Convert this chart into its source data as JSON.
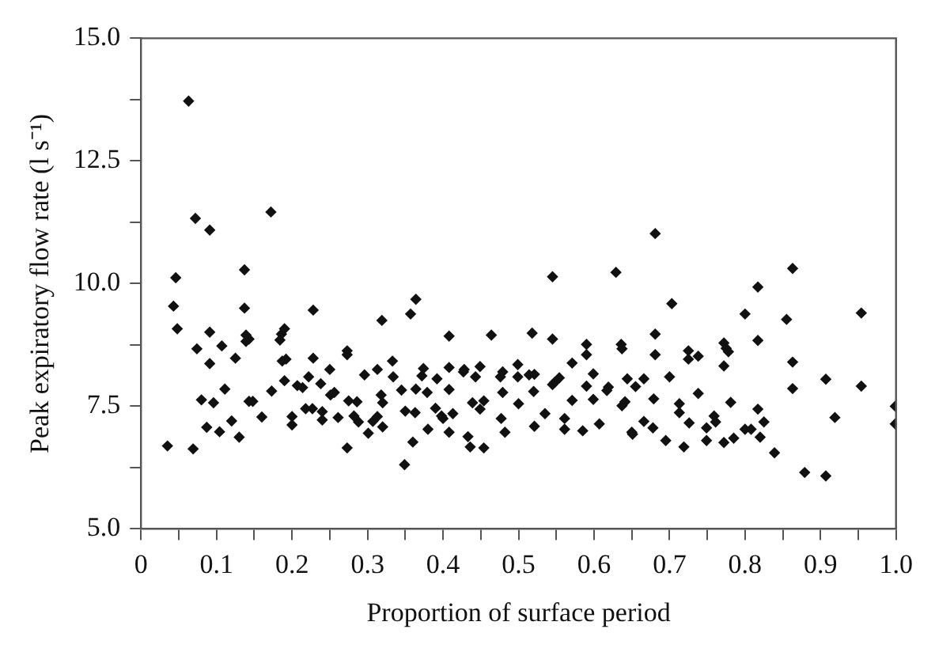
{
  "chart_data": {
    "type": "scatter",
    "xlabel": "Proportion of surface period",
    "ylabel": "Peak expiratory flow rate (l s⁻¹)",
    "marker": "diamond",
    "grid": false,
    "xlim": [
      0,
      1
    ],
    "ylim": [
      5,
      15
    ],
    "xticks": [
      0,
      {
        "value": 0.05,
        "label": null
      },
      0.1,
      {
        "value": 0.15,
        "label": null
      },
      0.2,
      {
        "value": 0.25,
        "label": null
      },
      0.3,
      {
        "value": 0.35,
        "label": null
      },
      0.4,
      {
        "value": 0.45,
        "label": null
      },
      0.5,
      {
        "value": 0.55,
        "label": null
      },
      0.6,
      {
        "value": 0.65,
        "label": null
      },
      0.7,
      {
        "value": 0.75,
        "label": null
      },
      0.8,
      {
        "value": 0.85,
        "label": null
      },
      0.9,
      {
        "value": 0.95,
        "label": null
      },
      {
        "value": 1,
        "label": "1.0"
      }
    ],
    "yticks": [
      {
        "value": 5,
        "label": "5.0"
      },
      {
        "value": 6.25,
        "label": null
      },
      7.5,
      {
        "value": 8.75,
        "label": null
      },
      {
        "value": 10,
        "label": "10.0"
      },
      {
        "value": 11.25,
        "label": null
      },
      12.5,
      {
        "value": 13.75,
        "label": null
      },
      {
        "value": 15,
        "label": "15.0"
      }
    ],
    "series": [
      {
        "color": "#111111",
        "x": [
          0.063,
          0.072,
          0.091,
          0.172,
          0.046,
          0.043,
          0.048,
          0.137,
          0.137,
          0.091,
          0.074,
          0.107,
          0.091,
          0.125,
          0.139,
          0.143,
          0.139,
          0.186,
          0.184,
          0.19,
          0.187,
          0.192,
          0.228,
          0.228,
          0.19,
          0.173,
          0.111,
          0.08,
          0.096,
          0.143,
          0.148,
          0.087,
          0.104,
          0.12,
          0.13,
          0.16,
          0.035,
          0.069,
          0.2,
          0.2,
          0.207,
          0.214,
          0.222,
          0.218,
          0.227,
          0.238,
          0.24,
          0.24,
          0.25,
          0.251,
          0.256,
          0.261,
          0.273,
          0.273,
          0.273,
          0.275,
          0.286,
          0.282,
          0.288,
          0.296,
          0.301,
          0.307,
          0.313,
          0.313,
          0.319,
          0.318,
          0.32,
          0.32,
          0.333,
          0.334,
          0.345,
          0.349,
          0.35,
          0.357,
          0.364,
          0.36,
          0.364,
          0.363,
          0.372,
          0.374,
          0.379,
          0.38,
          0.392,
          0.39,
          0.398,
          0.4,
          0.408,
          0.408,
          0.408,
          0.408,
          0.413,
          0.428,
          0.427,
          0.433,
          0.436,
          0.439,
          0.443,
          0.449,
          0.449,
          0.454,
          0.454,
          0.464,
          0.476,
          0.479,
          0.479,
          0.477,
          0.482,
          0.499,
          0.499,
          0.5,
          0.514,
          0.521,
          0.518,
          0.52,
          0.521,
          0.535,
          0.545,
          0.545,
          0.548,
          0.554,
          0.545,
          0.561,
          0.561,
          0.571,
          0.571,
          0.585,
          0.59,
          0.59,
          0.59,
          0.599,
          0.599,
          0.607,
          0.619,
          0.617,
          0.629,
          0.636,
          0.637,
          0.644,
          0.637,
          0.641,
          0.65,
          0.651,
          0.655,
          0.666,
          0.666,
          0.678,
          0.679,
          0.681,
          0.681,
          0.681,
          0.695,
          0.7,
          0.703,
          0.713,
          0.713,
          0.719,
          0.725,
          0.725,
          0.738,
          0.726,
          0.738,
          0.749,
          0.749,
          0.759,
          0.761,
          0.772,
          0.775,
          0.778,
          0.772,
          0.772,
          0.781,
          0.785,
          0.8,
          0.8,
          0.808,
          0.817,
          0.817,
          0.817,
          0.82,
          0.825,
          0.839,
          0.855,
          0.863,
          0.863,
          0.863,
          0.879,
          0.907,
          0.907,
          0.919,
          0.954,
          0.954,
          0.999,
          0.999
        ],
        "values": [
          13.72,
          11.33,
          11.09,
          11.46,
          10.12,
          9.54,
          9.08,
          10.28,
          9.5,
          9.01,
          8.67,
          8.73,
          8.37,
          8.48,
          8.95,
          8.87,
          8.82,
          8.97,
          8.85,
          9.08,
          8.42,
          8.46,
          9.46,
          8.48,
          8.02,
          7.81,
          7.85,
          7.63,
          7.57,
          7.6,
          7.6,
          7.07,
          6.98,
          7.2,
          6.87,
          7.28,
          6.69,
          6.63,
          7.29,
          7.12,
          7.92,
          7.88,
          8.1,
          7.45,
          7.45,
          7.96,
          7.39,
          7.22,
          8.25,
          7.73,
          7.78,
          7.27,
          8.63,
          8.55,
          6.65,
          7.61,
          7.59,
          7.3,
          7.18,
          8.14,
          6.95,
          7.19,
          8.25,
          7.29,
          9.25,
          7.73,
          7.57,
          7.08,
          8.42,
          8.1,
          7.83,
          6.31,
          7.4,
          9.38,
          9.68,
          6.77,
          7.85,
          7.37,
          8.12,
          8.27,
          7.78,
          7.03,
          8.06,
          7.46,
          7.3,
          7.25,
          8.93,
          8.29,
          7.84,
          6.97,
          7.35,
          8.25,
          8.2,
          6.88,
          6.67,
          7.57,
          8.1,
          8.31,
          7.44,
          6.65,
          7.61,
          8.95,
          8.1,
          8.2,
          7.78,
          7.25,
          6.97,
          8.35,
          8.1,
          7.55,
          8.14,
          8.15,
          8.99,
          7.8,
          7.09,
          7.35,
          10.14,
          8.87,
          7.99,
          8.08,
          7.94,
          7.25,
          7.03,
          8.38,
          7.62,
          7.0,
          8.76,
          8.55,
          7.91,
          8.16,
          7.64,
          7.14,
          7.89,
          7.82,
          10.23,
          8.76,
          8.67,
          8.06,
          7.51,
          7.59,
          6.97,
          6.93,
          7.9,
          8.06,
          7.19,
          7.06,
          7.65,
          11.02,
          8.97,
          8.55,
          6.8,
          8.1,
          9.59,
          7.55,
          7.37,
          6.67,
          8.63,
          8.46,
          8.52,
          7.16,
          7.76,
          7.06,
          6.8,
          7.3,
          7.18,
          8.79,
          8.68,
          8.61,
          8.32,
          6.76,
          7.58,
          6.85,
          9.38,
          7.03,
          7.03,
          9.93,
          8.84,
          7.44,
          6.87,
          7.18,
          6.55,
          9.27,
          10.31,
          8.4,
          7.86,
          6.15,
          8.05,
          6.08,
          7.27,
          9.4,
          7.91,
          7.5,
          7.14
        ]
      }
    ]
  }
}
